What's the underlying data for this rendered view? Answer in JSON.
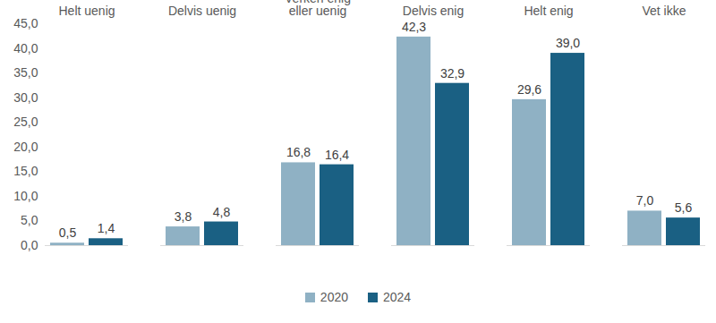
{
  "chart_data": {
    "type": "bar",
    "categories": [
      "Helt uenig",
      "Delvis uenig",
      "Verken enig eller uenig",
      "Delvis enig",
      "Helt enig",
      "Vet ikke"
    ],
    "series": [
      {
        "name": "2020",
        "color": "#8fb1c4",
        "values": [
          0.5,
          3.8,
          16.8,
          42.3,
          29.6,
          7.0
        ],
        "value_labels": [
          "0,5",
          "3,8",
          "16,8",
          "42,3",
          "29,6",
          "7,0"
        ]
      },
      {
        "name": "2024",
        "color": "#1a6083",
        "values": [
          1.4,
          4.8,
          16.4,
          32.9,
          39.0,
          5.6
        ],
        "value_labels": [
          "1,4",
          "4,8",
          "16,4",
          "32,9",
          "39,0",
          "5,6"
        ]
      }
    ],
    "ylim": [
      0,
      45
    ],
    "yticks": [
      {
        "value": 0,
        "label": "0,0"
      },
      {
        "value": 5,
        "label": "5,0"
      },
      {
        "value": 10,
        "label": "10,0"
      },
      {
        "value": 15,
        "label": "15,0"
      },
      {
        "value": 20,
        "label": "20,0"
      },
      {
        "value": 25,
        "label": "25,0"
      },
      {
        "value": 30,
        "label": "30,0"
      },
      {
        "value": 35,
        "label": "35,0"
      },
      {
        "value": 40,
        "label": "40,0"
      },
      {
        "value": 45,
        "label": "45,0"
      }
    ],
    "grid": false,
    "data_labels": true,
    "legend": "bottom"
  }
}
